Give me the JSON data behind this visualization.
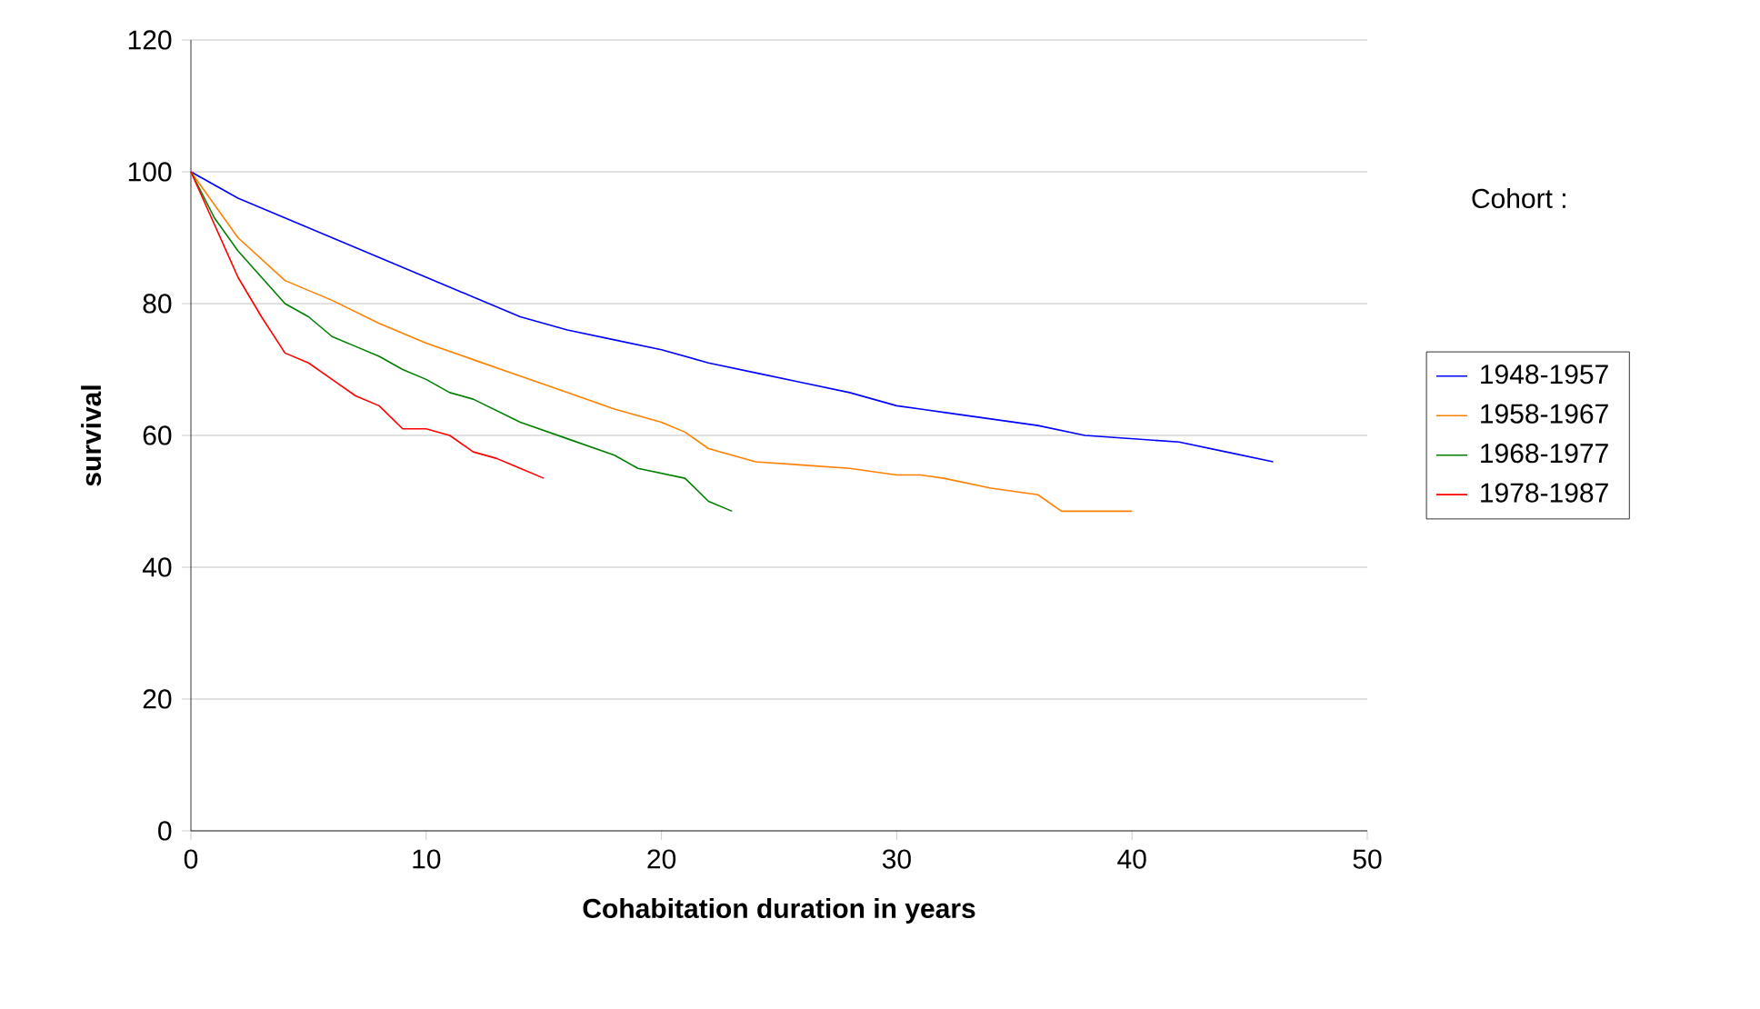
{
  "chart_data": {
    "type": "line",
    "xlabel": "Cohabitation duration in years",
    "ylabel": "survival",
    "legend_title": "Cohort :",
    "xlim": [
      0,
      50
    ],
    "ylim": [
      0,
      120
    ],
    "xticks": [
      0,
      10,
      20,
      30,
      40,
      50
    ],
    "yticks": [
      0,
      20,
      40,
      60,
      80,
      100,
      120
    ],
    "grid": "y",
    "legend": "right",
    "marker": "none",
    "series": [
      {
        "name": "1948-1957",
        "color": "#0000ff",
        "x": [
          0,
          2,
          4,
          6,
          8,
          10,
          12,
          14,
          16,
          18,
          20,
          22,
          24,
          26,
          28,
          30,
          32,
          34,
          36,
          38,
          40,
          42,
          44,
          46
        ],
        "values": [
          100,
          96,
          93,
          90,
          87,
          84,
          81,
          78,
          76,
          74.5,
          73,
          71,
          69.5,
          68,
          66.5,
          64.5,
          63.5,
          62.5,
          61.5,
          60,
          59.5,
          59,
          57.5,
          56
        ]
      },
      {
        "name": "1958-1967",
        "color": "#ff8000",
        "x": [
          0,
          2,
          4,
          5,
          6,
          8,
          10,
          12,
          14,
          16,
          18,
          20,
          21,
          22,
          24,
          26,
          28,
          30,
          31,
          32,
          34,
          36,
          37,
          40
        ],
        "values": [
          100,
          90,
          83.5,
          82,
          80.5,
          77,
          74,
          71.5,
          69,
          66.5,
          64,
          62,
          60.5,
          58,
          56,
          55.5,
          55,
          54,
          54,
          53.5,
          52,
          51,
          48.5,
          48.5
        ]
      },
      {
        "name": "1968-1977",
        "color": "#008000",
        "x": [
          0,
          1,
          2,
          3,
          4,
          5,
          6,
          7,
          8,
          9,
          10,
          11,
          12,
          14,
          16,
          18,
          19,
          21,
          22,
          23
        ],
        "values": [
          100,
          93,
          88,
          84,
          80,
          78,
          75,
          73.5,
          72,
          70,
          68.5,
          66.5,
          65.5,
          62,
          59.5,
          57,
          55,
          53.5,
          50,
          48.5
        ]
      },
      {
        "name": "1978-1987",
        "color": "#ff0000",
        "x": [
          0,
          1,
          2,
          3,
          4,
          5,
          6,
          7,
          8,
          9,
          10,
          11,
          12,
          13,
          14,
          15
        ],
        "values": [
          100,
          92,
          84,
          78,
          72.5,
          71,
          68.5,
          66,
          64.5,
          61,
          61,
          60,
          57.5,
          56.5,
          55,
          53.5
        ]
      }
    ]
  }
}
